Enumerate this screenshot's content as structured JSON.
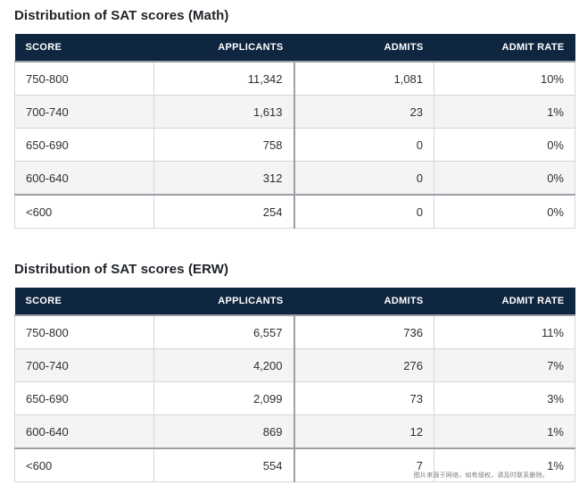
{
  "tables": [
    {
      "title": "Distribution of SAT scores (Math)",
      "headers": [
        "SCORE",
        "APPLICANTS",
        "ADMITS",
        "ADMIT RATE"
      ],
      "rows": [
        [
          "750-800",
          "11,342",
          "1,081",
          "10%"
        ],
        [
          "700-740",
          "1,613",
          "23",
          "1%"
        ],
        [
          "650-690",
          "758",
          "0",
          "0%"
        ],
        [
          "600-640",
          "312",
          "0",
          "0%"
        ],
        [
          "<600",
          "254",
          "0",
          "0%"
        ]
      ]
    },
    {
      "title": "Distribution of SAT scores (ERW)",
      "headers": [
        "SCORE",
        "APPLICANTS",
        "ADMITS",
        "ADMIT RATE"
      ],
      "rows": [
        [
          "750-800",
          "6,557",
          "736",
          "11%"
        ],
        [
          "700-740",
          "4,200",
          "276",
          "7%"
        ],
        [
          "650-690",
          "2,099",
          "73",
          "3%"
        ],
        [
          "600-640",
          "869",
          "12",
          "1%"
        ],
        [
          "<600",
          "554",
          "7",
          "1%"
        ]
      ]
    }
  ],
  "watermark": "图片来源于网络，如有侵权，请及时联系删除。",
  "colors": {
    "header_bg": "#0f2640",
    "header_text": "#ffffff",
    "row_alt_bg": "#f4f4f4",
    "border": "#d3d6d9"
  }
}
